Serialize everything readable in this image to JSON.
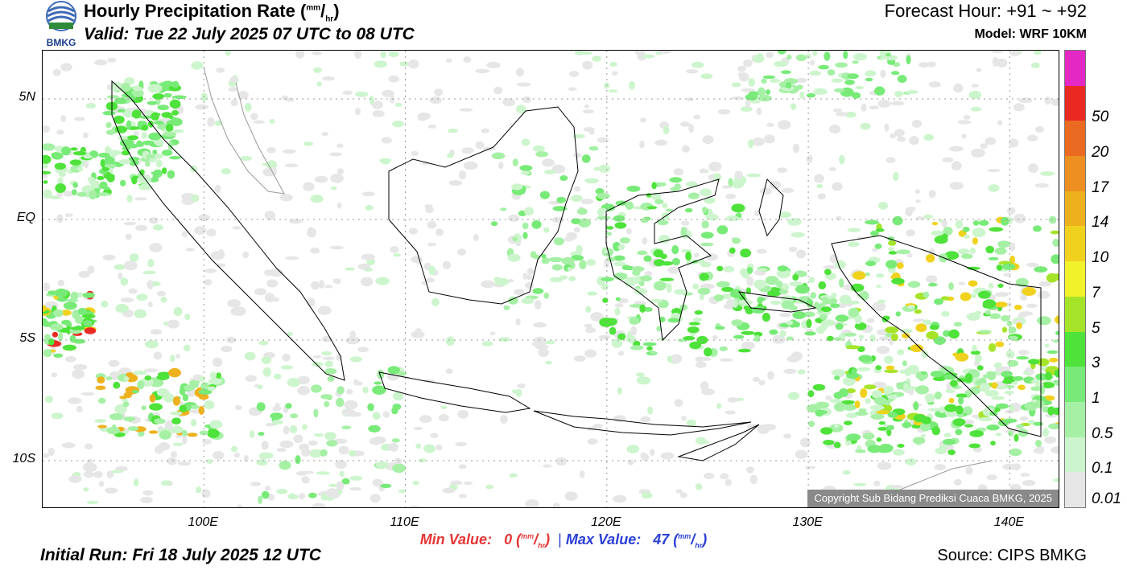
{
  "header": {
    "logo_text": "BMKG",
    "title_main": "Hourly Precipitation Rate (",
    "unit_num": "mm",
    "unit_den": "hr",
    "title_close": ")",
    "valid": "Valid: Tue 22 July 2025 07 UTC to 08 UTC",
    "forecast_hour": "Forecast Hour: +91 ~ +92",
    "model": "Model: WRF 10KM"
  },
  "map": {
    "lat_labels": [
      {
        "label": "5N",
        "lat": 5
      },
      {
        "label": "EQ",
        "lat": 0
      },
      {
        "label": "5S",
        "lat": -5
      },
      {
        "label": "10S",
        "lat": -10
      }
    ],
    "lon_labels": [
      {
        "label": "100E",
        "lon": 100
      },
      {
        "label": "110E",
        "lon": 110
      },
      {
        "label": "120E",
        "lon": 120
      },
      {
        "label": "130E",
        "lon": 130
      },
      {
        "label": "140E",
        "lon": 140
      }
    ],
    "copyright": "Copyright Sub Bidang Prediksi Cuaca BMKG, 2025"
  },
  "legend": {
    "levels": [
      {
        "label": "0.01",
        "color": "#e6e6e6"
      },
      {
        "label": "0.1",
        "color": "#cdf5cd"
      },
      {
        "label": "0.5",
        "color": "#a6f0a6"
      },
      {
        "label": "1",
        "color": "#78ea78"
      },
      {
        "label": "3",
        "color": "#4ee23a"
      },
      {
        "label": "5",
        "color": "#a6e42a"
      },
      {
        "label": "7",
        "color": "#f2f22a"
      },
      {
        "label": "10",
        "color": "#f0d21e"
      },
      {
        "label": "14",
        "color": "#eeb11e"
      },
      {
        "label": "17",
        "color": "#ee8f22"
      },
      {
        "label": "20",
        "color": "#ea6a22"
      },
      {
        "label": "50",
        "color": "#ea2a22"
      },
      {
        "label": "",
        "color": "#e428c4"
      }
    ]
  },
  "footer": {
    "min_label": "Min Value:",
    "min_value": "0",
    "sep": "|",
    "max_label": "Max Value:",
    "max_value": "47",
    "unit_num": "mm",
    "unit_den": "hr",
    "initial_run": "Initial Run: Fri 18 July 2025 12 UTC",
    "source": "Source: CIPS BMKG"
  }
}
